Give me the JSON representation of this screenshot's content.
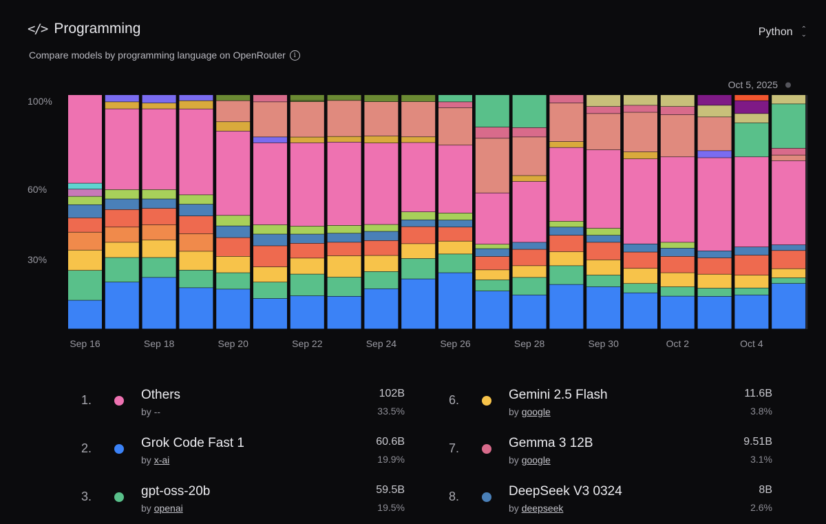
{
  "header": {
    "title": "Programming",
    "subtitle": "Compare models by programming language on OpenRouter",
    "language": "Python"
  },
  "colors": {
    "others": "#ee72b1",
    "grok": "#3b82f6",
    "gptoss": "#59c08a",
    "gemini_flash": "#f7c34a",
    "gemma": "#d86b8b",
    "deepseek": "#4a80b8",
    "orange_red": "#ee6a4f",
    "orange": "#f08a4b",
    "salmon": "#e08a7e",
    "lime": "#a8d05a",
    "purple_blue": "#7a6cf0",
    "cyan": "#5fd4d0",
    "khaki": "#c8c07a",
    "olive": "#6b8a33",
    "green_big": "#5aac6e",
    "gold": "#d9aa3c",
    "magenta": "#7f1a86",
    "red_orange": "#f2562f",
    "mauve": "#c879b8"
  },
  "chart_data": {
    "type": "bar",
    "stacked": true,
    "title": "Programming",
    "xlabel": "",
    "ylabel": "",
    "ylim": [
      0,
      100
    ],
    "yticks": [
      {
        "value": 30,
        "label": "30%"
      },
      {
        "value": 60,
        "label": "60%"
      },
      {
        "value": 100,
        "label": "100%"
      }
    ],
    "x_tick_labels": [
      "Sep 16",
      "Sep 18",
      "Sep 20",
      "Sep 22",
      "Sep 24",
      "Sep 26",
      "Sep 28",
      "Sep 30",
      "Oct 2",
      "Oct 4"
    ],
    "x_tick_indices": [
      0,
      2,
      4,
      6,
      8,
      10,
      12,
      14,
      16,
      18
    ],
    "hover_label": "Oct 5, 2025",
    "categories": [
      "Sep 16",
      "Sep 17",
      "Sep 18",
      "Sep 19",
      "Sep 20",
      "Sep 21",
      "Sep 22",
      "Sep 23",
      "Sep 24",
      "Sep 25",
      "Sep 26",
      "Sep 27",
      "Sep 28",
      "Sep 29",
      "Sep 30",
      "Oct 1",
      "Oct 2",
      "Oct 3",
      "Oct 4",
      "Oct 5"
    ],
    "bars": [
      [
        [
          "grok",
          12
        ],
        [
          "gptoss",
          12.5
        ],
        [
          "gemini_flash",
          8.5
        ],
        [
          "orange",
          7.5
        ],
        [
          "orange_red",
          6
        ],
        [
          "deepseek",
          5.5
        ],
        [
          "lime",
          3.5
        ],
        [
          "mauve",
          3
        ],
        [
          "cyan",
          2.5
        ],
        [
          "others",
          37
        ]
      ],
      [
        [
          "grok",
          20
        ],
        [
          "gptoss",
          10.5
        ],
        [
          "gemini_flash",
          6.5
        ],
        [
          "orange",
          6.5
        ],
        [
          "orange_red",
          7.5
        ],
        [
          "deepseek",
          4.5
        ],
        [
          "lime",
          4
        ],
        [
          "others",
          34.5
        ],
        [
          "gold",
          3
        ],
        [
          "purple_blue",
          3
        ]
      ],
      [
        [
          "grok",
          22
        ],
        [
          "gptoss",
          8.5
        ],
        [
          "gemini_flash",
          7.5
        ],
        [
          "orange",
          6.5
        ],
        [
          "orange_red",
          7
        ],
        [
          "deepseek",
          4
        ],
        [
          "lime",
          4
        ],
        [
          "others",
          34.5
        ],
        [
          "gold",
          2.5
        ],
        [
          "purple_blue",
          3.5
        ]
      ],
      [
        [
          "grok",
          17.5
        ],
        [
          "gptoss",
          7.5
        ],
        [
          "gemini_flash",
          8
        ],
        [
          "orange",
          7.5
        ],
        [
          "orange_red",
          7.5
        ],
        [
          "deepseek",
          5
        ],
        [
          "lime",
          4
        ],
        [
          "others",
          36.5
        ],
        [
          "gold",
          3.5
        ],
        [
          "purple_blue",
          2.5
        ]
      ],
      [
        [
          "grok",
          17
        ],
        [
          "gptoss",
          7
        ],
        [
          "gemini_flash",
          7
        ],
        [
          "orange_red",
          8
        ],
        [
          "deepseek",
          5
        ],
        [
          "lime",
          4.5
        ],
        [
          "others",
          36
        ],
        [
          "gold",
          4
        ],
        [
          "salmon",
          9
        ],
        [
          "olive",
          2.5
        ]
      ],
      [
        [
          "grok",
          13
        ],
        [
          "gptoss",
          7
        ],
        [
          "gemini_flash",
          6.5
        ],
        [
          "orange_red",
          9
        ],
        [
          "deepseek",
          5
        ],
        [
          "lime",
          4
        ],
        [
          "others",
          35
        ],
        [
          "purple_blue",
          2.5
        ],
        [
          "salmon",
          15
        ],
        [
          "gemma",
          3
        ]
      ],
      [
        [
          "grok",
          14.5
        ],
        [
          "gptoss",
          9.5
        ],
        [
          "gemini_flash",
          7
        ],
        [
          "orange_red",
          6.5
        ],
        [
          "deepseek",
          4
        ],
        [
          "lime",
          3.5
        ],
        [
          "others",
          36.5
        ],
        [
          "gold",
          2.5
        ],
        [
          "salmon",
          15.5
        ],
        [
          "olive",
          0.5
        ],
        [
          "olive",
          2.5
        ]
      ],
      [
        [
          "grok",
          14.5
        ],
        [
          "gptoss",
          8.5
        ],
        [
          "gemini_flash",
          9.5
        ],
        [
          "orange_red",
          6
        ],
        [
          "deepseek",
          4
        ],
        [
          "lime",
          3.5
        ],
        [
          "others",
          37
        ],
        [
          "gold",
          2.5
        ],
        [
          "salmon",
          16
        ],
        [
          "olive",
          2.5
        ]
      ],
      [
        [
          "grok",
          17.5
        ],
        [
          "gptoss",
          7.5
        ],
        [
          "gemini_flash",
          7
        ],
        [
          "orange_red",
          6.5
        ],
        [
          "deepseek",
          4
        ],
        [
          "lime",
          3
        ],
        [
          "others",
          35.5
        ],
        [
          "gold",
          3
        ],
        [
          "salmon",
          15
        ],
        [
          "olive",
          3
        ]
      ],
      [
        [
          "grok",
          22
        ],
        [
          "gptoss",
          9
        ],
        [
          "gemini_flash",
          6.5
        ],
        [
          "orange_red",
          7.5
        ],
        [
          "deepseek",
          3
        ],
        [
          "lime",
          3.5
        ],
        [
          "others",
          30.5
        ],
        [
          "gold",
          2.5
        ],
        [
          "salmon",
          15.5
        ],
        [
          "olive",
          3
        ]
      ],
      [
        [
          "grok",
          24
        ],
        [
          "gptoss",
          8
        ],
        [
          "gemini_flash",
          5.5
        ],
        [
          "orange_red",
          6
        ],
        [
          "deepseek",
          3
        ],
        [
          "lime",
          3
        ],
        [
          "others",
          29
        ],
        [
          "salmon",
          16
        ],
        [
          "gemma",
          2.5
        ],
        [
          "gptoss",
          3
        ]
      ],
      [
        [
          "grok",
          17
        ],
        [
          "gptoss",
          5
        ],
        [
          "gemini_flash",
          4.5
        ],
        [
          "orange_red",
          6
        ],
        [
          "deepseek",
          3.5
        ],
        [
          "lime",
          2
        ],
        [
          "others",
          23
        ],
        [
          "salmon",
          24.5
        ],
        [
          "gemma",
          5
        ],
        [
          "gptoss",
          14.5
        ]
      ],
      [
        [
          "grok",
          14.5
        ],
        [
          "gptoss",
          7.5
        ],
        [
          "gemini_flash",
          5
        ],
        [
          "orange_red",
          7
        ],
        [
          "deepseek",
          3
        ],
        [
          "others",
          26
        ],
        [
          "gold",
          2.5
        ],
        [
          "salmon",
          16.5
        ],
        [
          "gemma",
          4
        ],
        [
          "gptoss",
          14
        ]
      ],
      [
        [
          "grok",
          19
        ],
        [
          "gptoss",
          8
        ],
        [
          "gemini_flash",
          6
        ],
        [
          "orange_red",
          7
        ],
        [
          "deepseek",
          3.5
        ],
        [
          "lime",
          2.5
        ],
        [
          "others",
          31.5
        ],
        [
          "gold",
          2.5
        ],
        [
          "salmon",
          16.5
        ],
        [
          "gemma",
          3.5
        ]
      ],
      [
        [
          "grok",
          18
        ],
        [
          "gptoss",
          5
        ],
        [
          "gemini_flash",
          6.5
        ],
        [
          "orange_red",
          7.5
        ],
        [
          "deepseek",
          3
        ],
        [
          "lime",
          3
        ],
        [
          "others",
          33.5
        ],
        [
          "salmon",
          15.5
        ],
        [
          "gemma",
          3
        ],
        [
          "khaki",
          5
        ]
      ],
      [
        [
          "grok",
          15.5
        ],
        [
          "gptoss",
          4
        ],
        [
          "gemini_flash",
          6.5
        ],
        [
          "orange_red",
          7
        ],
        [
          "deepseek",
          3.5
        ],
        [
          "others",
          36.5
        ],
        [
          "gold",
          3
        ],
        [
          "salmon",
          17
        ],
        [
          "gemma",
          3
        ],
        [
          "khaki",
          4.5
        ]
      ],
      [
        [
          "grok",
          14
        ],
        [
          "gptoss",
          4
        ],
        [
          "gemini_flash",
          6
        ],
        [
          "orange_red",
          7
        ],
        [
          "deepseek",
          3.5
        ],
        [
          "lime",
          2.5
        ],
        [
          "others",
          36.5
        ],
        [
          "salmon",
          18
        ],
        [
          "gemma",
          3.5
        ],
        [
          "khaki",
          5
        ]
      ],
      [
        [
          "grok",
          14
        ],
        [
          "gptoss",
          3.5
        ],
        [
          "gemini_flash",
          6
        ],
        [
          "orange_red",
          7
        ],
        [
          "deepseek",
          3
        ],
        [
          "others",
          40
        ],
        [
          "purple_blue",
          3
        ],
        [
          "salmon",
          14.5
        ],
        [
          "khaki",
          5
        ],
        [
          "magenta",
          4.5
        ]
      ],
      [
        [
          "grok",
          14.5
        ],
        [
          "gptoss",
          3
        ],
        [
          "gemini_flash",
          5.5
        ],
        [
          "orange_red",
          8.5
        ],
        [
          "deepseek",
          3.5
        ],
        [
          "others",
          38.5
        ],
        [
          "gptoss",
          14.5
        ],
        [
          "khaki",
          4
        ],
        [
          "magenta",
          5.5
        ],
        [
          "red_orange",
          2.5
        ]
      ],
      [
        [
          "grok",
          20
        ],
        [
          "gptoss",
          2.5
        ],
        [
          "gemini_flash",
          4
        ],
        [
          "orange_red",
          8
        ],
        [
          "deepseek",
          2.5
        ],
        [
          "others",
          37
        ],
        [
          "salmon",
          2.5
        ],
        [
          "gemma",
          3
        ],
        [
          "gptoss",
          19.5
        ],
        [
          "khaki",
          4
        ]
      ]
    ]
  },
  "legend": [
    {
      "rank": "1.",
      "name": "Others",
      "by": "by",
      "author": "--",
      "tokens": "102B",
      "share": "33.5%",
      "color": "#ee72b1"
    },
    {
      "rank": "2.",
      "name": "Grok Code Fast 1",
      "by": "by",
      "author": "x-ai",
      "tokens": "60.6B",
      "share": "19.9%",
      "color": "#3b82f6"
    },
    {
      "rank": "3.",
      "name": "gpt-oss-20b",
      "by": "by",
      "author": "openai",
      "tokens": "59.5B",
      "share": "19.5%",
      "color": "#59c08a"
    },
    {
      "rank": "6.",
      "name": "Gemini 2.5 Flash",
      "by": "by",
      "author": "google",
      "tokens": "11.6B",
      "share": "3.8%",
      "color": "#f7c34a"
    },
    {
      "rank": "7.",
      "name": "Gemma 3 12B",
      "by": "by",
      "author": "google",
      "tokens": "9.51B",
      "share": "3.1%",
      "color": "#d86b8b"
    },
    {
      "rank": "8.",
      "name": "DeepSeek V3 0324",
      "by": "by",
      "author": "deepseek",
      "tokens": "8B",
      "share": "2.6%",
      "color": "#4a80b8"
    }
  ]
}
